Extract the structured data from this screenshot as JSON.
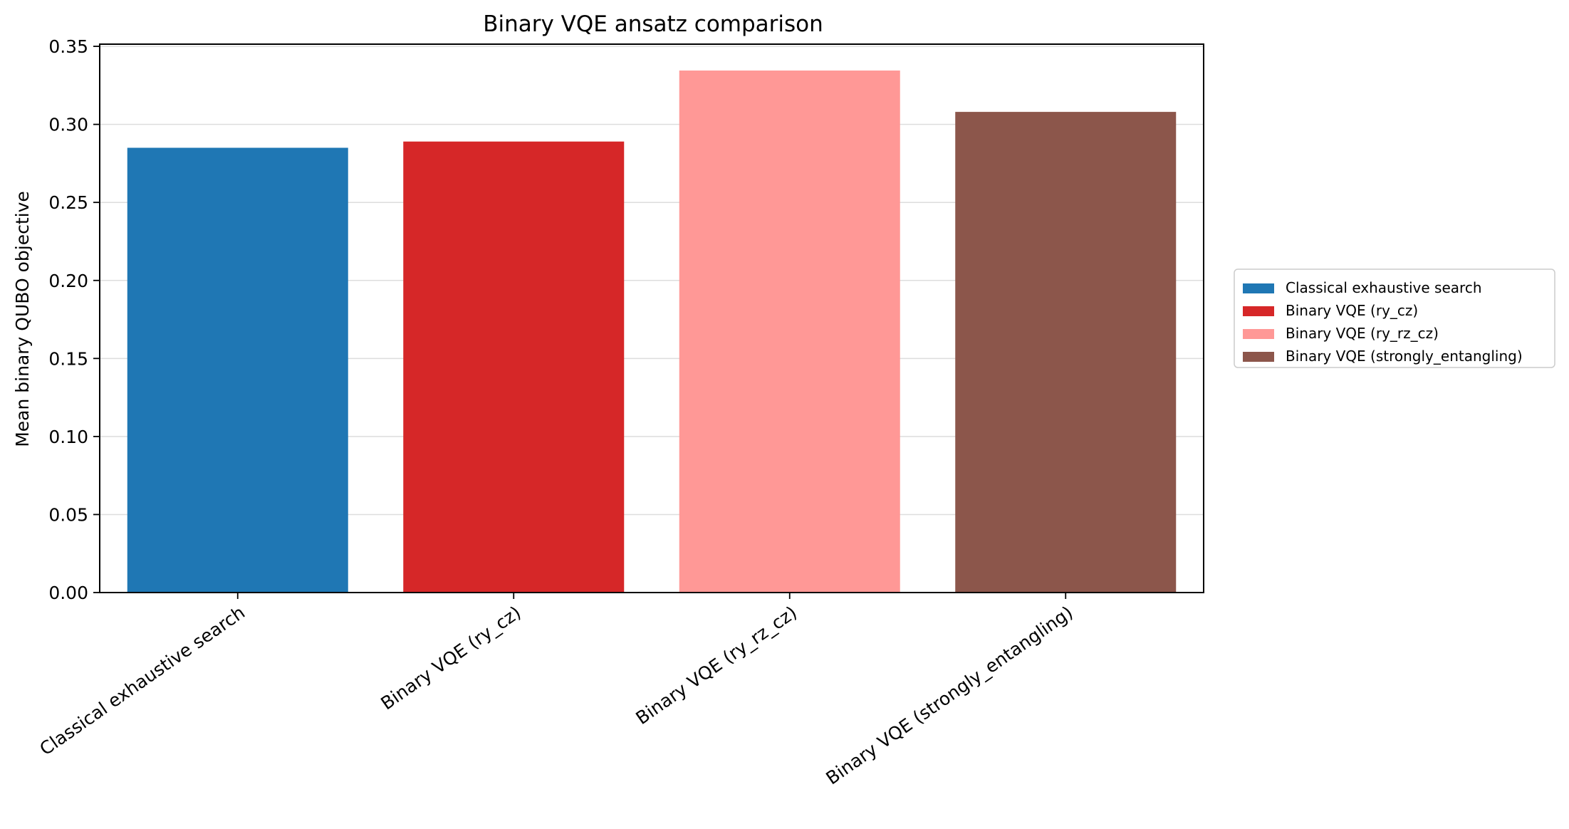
{
  "chart_data": {
    "type": "bar",
    "title": "Binary VQE ansatz comparison",
    "xlabel": "",
    "ylabel": "Mean binary QUBO objective",
    "ylim": [
      0,
      0.3514
    ],
    "yticks": [
      0.0,
      0.05,
      0.1,
      0.15,
      0.2,
      0.25,
      0.3,
      0.35
    ],
    "ytick_labels": [
      "0.00",
      "0.05",
      "0.10",
      "0.15",
      "0.20",
      "0.25",
      "0.30",
      "0.35"
    ],
    "grid": "horizontal",
    "legend_position": "right-outside",
    "categories": [
      "Classical exhaustive search",
      "Binary VQE (ry_cz)",
      "Binary VQE (ry_rz_cz)",
      "Binary VQE (strongly_entangling)"
    ],
    "values": [
      0.285,
      0.289,
      0.3345,
      0.308
    ],
    "colors": [
      "#1f77b4",
      "#d62728",
      "#ff9896",
      "#8c564b"
    ],
    "legend": [
      "Classical exhaustive search",
      "Binary VQE (ry_cz)",
      "Binary VQE (ry_rz_cz)",
      "Binary VQE (strongly_entangling)"
    ]
  }
}
